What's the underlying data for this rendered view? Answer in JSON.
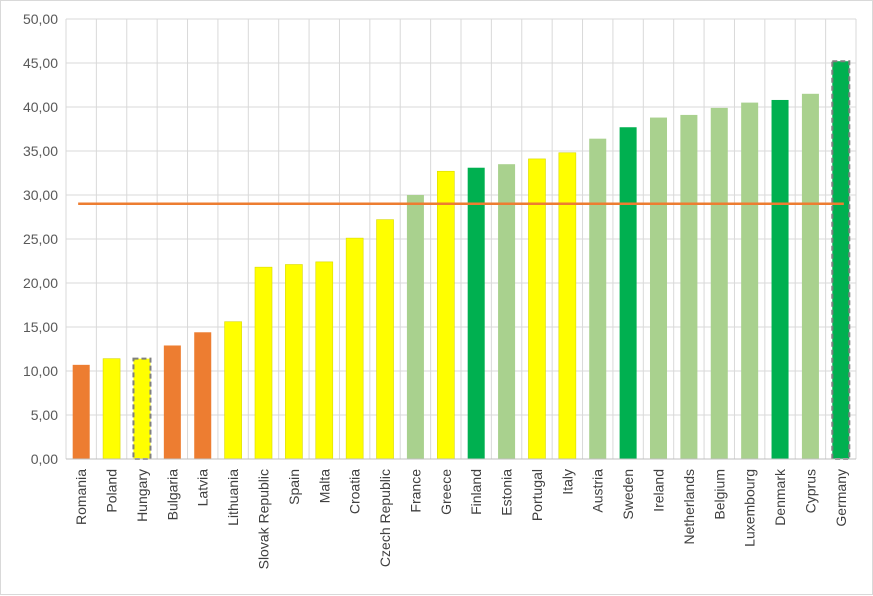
{
  "chart_data": {
    "type": "bar",
    "title": "",
    "xlabel": "",
    "ylabel": "",
    "ylim": [
      0,
      50
    ],
    "ytick_step": 5,
    "ytick_labels": [
      "0,00",
      "5,00",
      "10,00",
      "15,00",
      "20,00",
      "25,00",
      "30,00",
      "35,00",
      "40,00",
      "45,00",
      "50,00"
    ],
    "grid": true,
    "legend": "none",
    "categories": [
      "Romania",
      "Poland",
      "Hungary",
      "Bulgaria",
      "Latvia",
      "Lithuania",
      "Slovak Republic",
      "Spain",
      "Malta",
      "Croatia",
      "Czech Republic",
      "France",
      "Greece",
      "Finland",
      "Estonia",
      "Portugal",
      "Italy",
      "Austria",
      "Sweden",
      "Ireland",
      "Netherlands",
      "Belgium",
      "Luxembourg",
      "Denmark",
      "Cyprus",
      "Germany"
    ],
    "values": [
      10.7,
      11.4,
      11.4,
      12.9,
      14.4,
      15.6,
      21.8,
      22.1,
      22.4,
      25.1,
      27.2,
      30.0,
      32.7,
      33.1,
      33.5,
      34.1,
      34.8,
      36.4,
      37.7,
      38.8,
      39.1,
      39.9,
      40.5,
      40.8,
      41.5,
      45.2
    ],
    "bar_colors": [
      "#ed7d31",
      "#ffff00",
      "#ffff00",
      "#ed7d31",
      "#ed7d31",
      "#ffff00",
      "#ffff00",
      "#ffff00",
      "#ffff00",
      "#ffff00",
      "#ffff00",
      "#a9d18e",
      "#ffff00",
      "#00b050",
      "#a9d18e",
      "#ffff00",
      "#ffff00",
      "#a9d18e",
      "#00b050",
      "#a9d18e",
      "#a9d18e",
      "#a9d18e",
      "#a9d18e",
      "#00b050",
      "#a9d18e",
      "#00b050"
    ],
    "highlighted": [
      "Hungary",
      "Germany"
    ],
    "reference_line": {
      "value": 29.0,
      "color": "#ed7d31"
    }
  }
}
